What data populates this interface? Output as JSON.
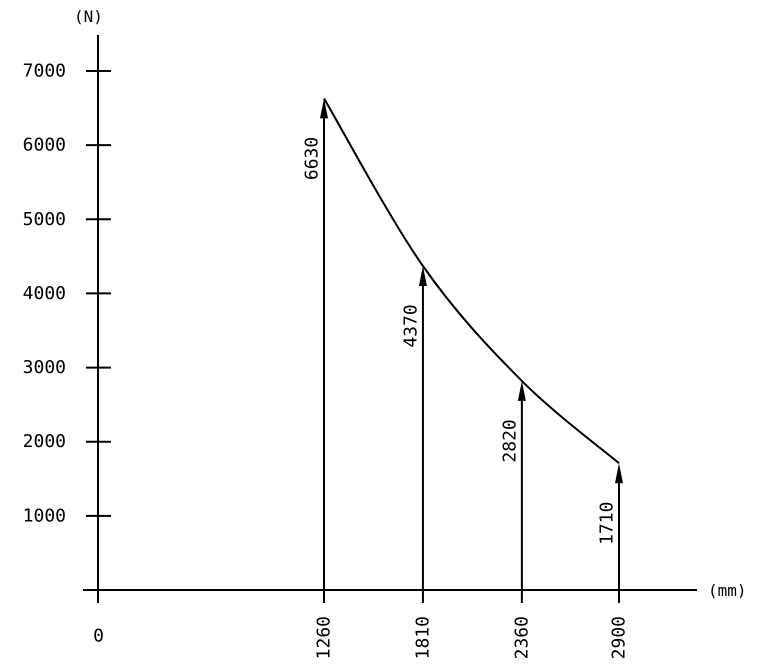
{
  "chart_data": {
    "type": "line",
    "title": "",
    "y_unit": "(N)",
    "x_unit": "(mm)",
    "origin_label": "0",
    "x": [
      1260,
      1810,
      2360,
      2900
    ],
    "x_tick_labels": [
      "1260",
      "1810",
      "2360",
      "2900"
    ],
    "y_ticks": [
      1000,
      2000,
      3000,
      4000,
      5000,
      6000,
      7000
    ],
    "y_tick_labels": [
      "1000",
      "2000",
      "3000",
      "4000",
      "5000",
      "6000",
      "7000"
    ],
    "series": [
      {
        "values": [
          6630,
          4370,
          2820,
          1710
        ],
        "labels": [
          "6630",
          "4370",
          "2820",
          "1710"
        ]
      }
    ],
    "ylim": [
      0,
      7000
    ],
    "grid": false,
    "annotations": "vertical arrows at each x point with values"
  }
}
